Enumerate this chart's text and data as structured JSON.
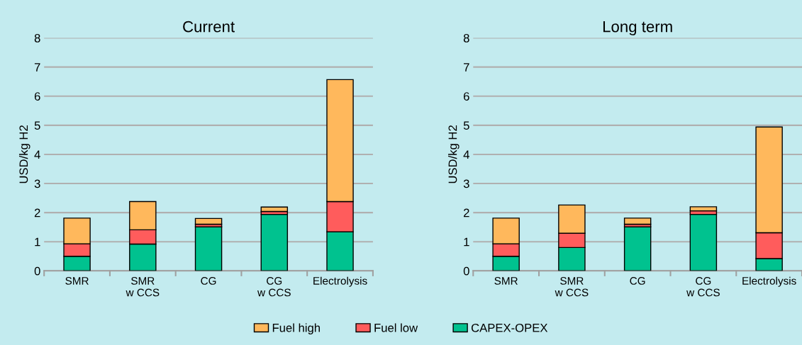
{
  "chart_data": [
    {
      "type": "bar",
      "title": "Current",
      "ylabel": "USD/kg H2",
      "categories": [
        "SMR",
        "SMR\nw CCS",
        "CG",
        "CG\nw CCS",
        "Electrolysis"
      ],
      "stacked": true,
      "ylim": [
        0,
        8
      ],
      "yticks": [
        0,
        1,
        2,
        3,
        4,
        5,
        6,
        7,
        8
      ],
      "grid": "y",
      "legend": "bottom",
      "series": [
        {
          "name": "CAPEX-OPEX",
          "color": "#00c28f",
          "values": [
            0.5,
            0.92,
            1.51,
            1.94,
            1.34
          ]
        },
        {
          "name": "Fuel low",
          "color": "#ff5c5c",
          "values": [
            0.43,
            0.49,
            0.09,
            0.1,
            1.04
          ]
        },
        {
          "name": "Fuel high",
          "color": "#ffb85c",
          "values": [
            0.88,
            0.97,
            0.2,
            0.15,
            4.19
          ]
        }
      ]
    },
    {
      "type": "bar",
      "title": "Long term",
      "ylabel": "USD/kg H2",
      "categories": [
        "SMR",
        "SMR\nw CCS",
        "CG",
        "CG\nw CCS",
        "Electrolysis"
      ],
      "stacked": true,
      "ylim": [
        0,
        8
      ],
      "yticks": [
        0,
        1,
        2,
        3,
        4,
        5,
        6,
        7,
        8
      ],
      "grid": "y",
      "legend": "bottom",
      "series": [
        {
          "name": "CAPEX-OPEX",
          "color": "#00c28f",
          "values": [
            0.5,
            0.8,
            1.51,
            1.94,
            0.42
          ]
        },
        {
          "name": "Fuel low",
          "color": "#ff5c5c",
          "values": [
            0.43,
            0.49,
            0.09,
            0.12,
            0.89
          ]
        },
        {
          "name": "Fuel high",
          "color": "#ffb85c",
          "values": [
            0.88,
            0.97,
            0.21,
            0.14,
            3.63
          ]
        }
      ]
    }
  ]
}
